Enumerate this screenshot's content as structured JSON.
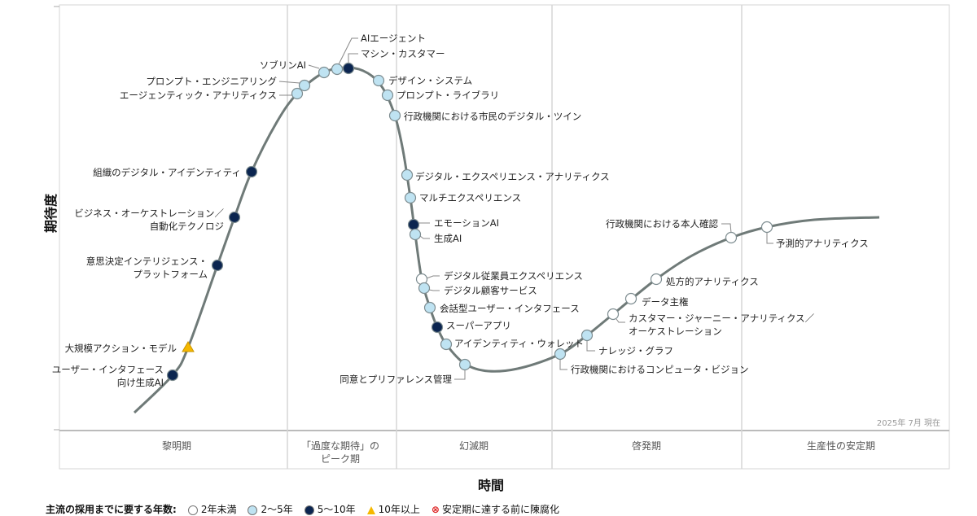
{
  "axes": {
    "y_label": "期待度",
    "x_label": "時間",
    "as_of": "2025年 7月 現在"
  },
  "phases": [
    {
      "lines": [
        "黎明期"
      ]
    },
    {
      "lines": [
        "「過度な期待」の",
        "ピーク期"
      ]
    },
    {
      "lines": [
        "幻滅期"
      ]
    },
    {
      "lines": [
        "啓発期"
      ]
    },
    {
      "lines": [
        "生産性の安定期"
      ]
    }
  ],
  "categories": {
    "lt2": {
      "label": "2年未満",
      "color": "#ffffff"
    },
    "2to5": {
      "label": "2～5年",
      "color": "#bfe3f2"
    },
    "5to10": {
      "label": "5～10年",
      "color": "#0b2550"
    },
    "gt10": {
      "label": "10年以上",
      "color": "#f5b800"
    },
    "obsolete": {
      "label": "安定期に達する前に陳腐化",
      "color": "#d22222"
    }
  },
  "legend": {
    "title": "主流の採用までに要する年数:"
  },
  "curve_color": "#6f7a78",
  "items": [
    {
      "lines": [
        "ユーザー・インタフェース",
        "向け生成AI"
      ],
      "cat": "5to10"
    },
    {
      "lines": [
        "大規模アクション・モデル"
      ],
      "cat": "gt10"
    },
    {
      "lines": [
        "意思決定インテリジェンス・",
        "プラットフォーム"
      ],
      "cat": "5to10"
    },
    {
      "lines": [
        "ビジネス・オーケストレーション／",
        "自動化テクノロジ"
      ],
      "cat": "5to10"
    },
    {
      "lines": [
        "組織のデジタル・アイデンティティ"
      ],
      "cat": "5to10"
    },
    {
      "lines": [
        "エージェンティック・アナリティクス"
      ],
      "cat": "2to5"
    },
    {
      "lines": [
        "プロンプト・エンジニアリング"
      ],
      "cat": "2to5"
    },
    {
      "lines": [
        "ソブリンAI"
      ],
      "cat": "2to5"
    },
    {
      "lines": [
        "AIエージェント"
      ],
      "cat": "2to5"
    },
    {
      "lines": [
        "マシン・カスタマー"
      ],
      "cat": "5to10"
    },
    {
      "lines": [
        "デザイン・システム"
      ],
      "cat": "2to5"
    },
    {
      "lines": [
        "プロンプト・ライブラリ"
      ],
      "cat": "2to5"
    },
    {
      "lines": [
        "行政機関における市民のデジタル・ツイン"
      ],
      "cat": "2to5"
    },
    {
      "lines": [
        "デジタル・エクスペリエンス・アナリティクス"
      ],
      "cat": "2to5"
    },
    {
      "lines": [
        "マルチエクスペリエンス"
      ],
      "cat": "2to5"
    },
    {
      "lines": [
        "エモーションAI"
      ],
      "cat": "5to10"
    },
    {
      "lines": [
        "生成AI"
      ],
      "cat": "2to5"
    },
    {
      "lines": [
        "デジタル従業員エクスペリエンス"
      ],
      "cat": "lt2"
    },
    {
      "lines": [
        "デジタル顧客サービス"
      ],
      "cat": "2to5"
    },
    {
      "lines": [
        "会話型ユーザー・インタフェース"
      ],
      "cat": "2to5"
    },
    {
      "lines": [
        "スーパーアプリ"
      ],
      "cat": "5to10"
    },
    {
      "lines": [
        "アイデンティティ・ウォレット"
      ],
      "cat": "2to5"
    },
    {
      "lines": [
        "同意とプリファレンス管理"
      ],
      "cat": "2to5"
    },
    {
      "lines": [
        "行政機関におけるコンピュータ・ビジョン"
      ],
      "cat": "2to5"
    },
    {
      "lines": [
        "ナレッジ・グラフ"
      ],
      "cat": "2to5"
    },
    {
      "lines": [
        "カスタマー・ジャーニー・アナリティクス／",
        "オーケストレーション"
      ],
      "cat": "lt2"
    },
    {
      "lines": [
        "データ主権"
      ],
      "cat": "lt2"
    },
    {
      "lines": [
        "処方的アナリティクス"
      ],
      "cat": "lt2"
    },
    {
      "lines": [
        "行政機関における本人確認"
      ],
      "cat": "lt2"
    },
    {
      "lines": [
        "予測的アナリティクス"
      ],
      "cat": "lt2"
    }
  ]
}
